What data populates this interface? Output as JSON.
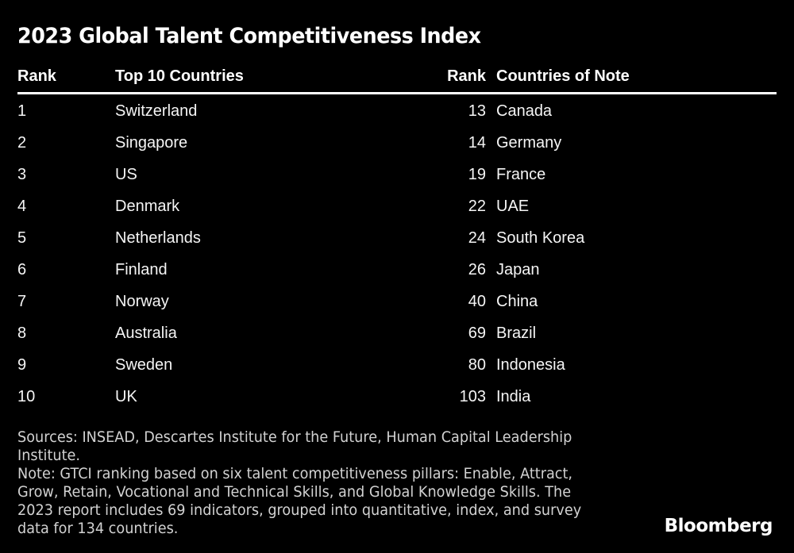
{
  "chart_data": {
    "type": "table",
    "title": "2023 Global Talent Competitiveness Index",
    "tables": [
      {
        "columns": [
          "Rank",
          "Top 10 Countries"
        ],
        "rows": [
          [
            "1",
            "Switzerland"
          ],
          [
            "2",
            "Singapore"
          ],
          [
            "3",
            "US"
          ],
          [
            "4",
            "Denmark"
          ],
          [
            "5",
            "Netherlands"
          ],
          [
            "6",
            "Finland"
          ],
          [
            "7",
            "Norway"
          ],
          [
            "8",
            "Australia"
          ],
          [
            "9",
            "Sweden"
          ],
          [
            "10",
            "UK"
          ]
        ]
      },
      {
        "columns": [
          "Rank",
          "Countries of Note"
        ],
        "rows": [
          [
            "13",
            "Canada"
          ],
          [
            "14",
            "Germany"
          ],
          [
            "19",
            "France"
          ],
          [
            "22",
            "UAE"
          ],
          [
            "24",
            "South Korea"
          ],
          [
            "26",
            "Japan"
          ],
          [
            "40",
            "China"
          ],
          [
            "69",
            "Brazil"
          ],
          [
            "80",
            "Indonesia"
          ],
          [
            "103",
            "India"
          ]
        ]
      }
    ]
  },
  "footnote": {
    "lines": [
      "Sources: INSEAD, Descartes Institute for the Future, Human Capital Leadership",
      "Institute.",
      "Note: GTCI ranking based on six talent competitiveness pillars: Enable, Attract,",
      "Grow, Retain, Vocational and Technical Skills, and Global Knowledge Skills. The",
      "2023 report includes 69 indicators, grouped into quantitative, index, and survey",
      "data for 134 countries."
    ]
  },
  "branding": {
    "logo": "Bloomberg"
  },
  "colors": {
    "background": "#000000",
    "text": "#ffffff",
    "body_text": "#f5f5f5",
    "footnote_text": "#d2d2d2"
  }
}
